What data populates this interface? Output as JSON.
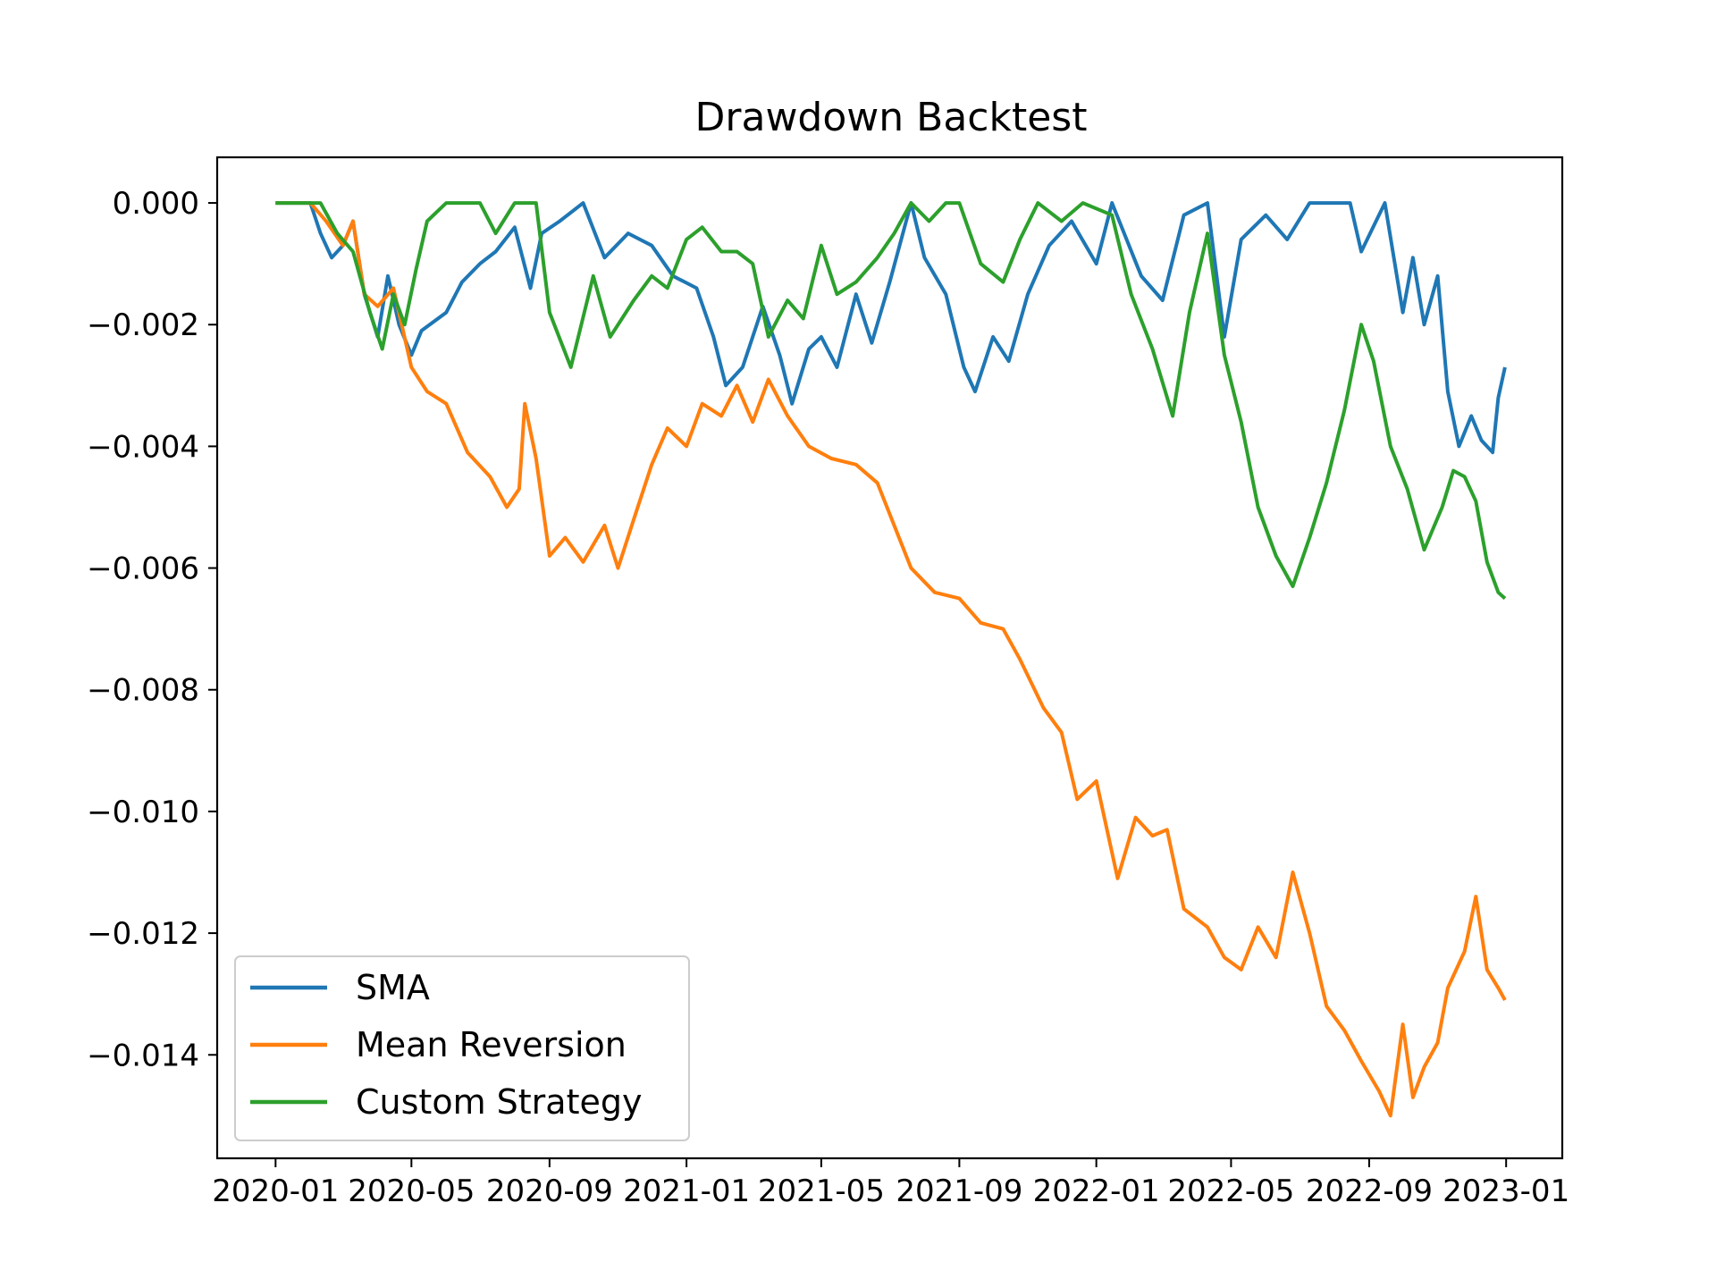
{
  "chart_data": {
    "type": "line",
    "title": "Drawdown Backtest",
    "xlabel": "",
    "ylabel": "",
    "x_axis": {
      "kind": "date",
      "range": [
        "2019-11-10",
        "2023-02-20"
      ],
      "ticks": [
        "2020-01",
        "2020-05",
        "2020-09",
        "2021-01",
        "2021-05",
        "2021-09",
        "2022-01",
        "2022-05",
        "2022-09",
        "2023-01"
      ]
    },
    "y_axis": {
      "range": [
        -0.0157,
        0.00075
      ],
      "ticks": [
        0,
        -0.002,
        -0.004,
        -0.006,
        -0.008,
        -0.01,
        -0.012,
        -0.014
      ],
      "tick_labels": [
        "0.000",
        "−0.002",
        "−0.004",
        "−0.006",
        "−0.008",
        "−0.010",
        "−0.012",
        "−0.014"
      ]
    },
    "grid": false,
    "legend": {
      "position": "lower-left",
      "entries": [
        "SMA",
        "Mean Reversion",
        "Custom Strategy"
      ]
    },
    "series": [
      {
        "name": "SMA",
        "color": "#1f77b4",
        "points": [
          [
            "2020-01-01",
            0
          ],
          [
            "2020-02-01",
            0
          ],
          [
            "2020-02-10",
            -0.0005
          ],
          [
            "2020-02-20",
            -0.0009
          ],
          [
            "2020-03-01",
            -0.0007
          ],
          [
            "2020-03-10",
            -0.0003
          ],
          [
            "2020-03-20",
            -0.0015
          ],
          [
            "2020-04-01",
            -0.0022
          ],
          [
            "2020-04-10",
            -0.0012
          ],
          [
            "2020-04-20",
            -0.002
          ],
          [
            "2020-05-01",
            -0.0025
          ],
          [
            "2020-05-10",
            -0.0021
          ],
          [
            "2020-06-01",
            -0.0018
          ],
          [
            "2020-06-15",
            -0.0013
          ],
          [
            "2020-07-01",
            -0.001
          ],
          [
            "2020-07-15",
            -0.0008
          ],
          [
            "2020-08-01",
            -0.0004
          ],
          [
            "2020-08-15",
            -0.0014
          ],
          [
            "2020-08-25",
            -0.0005
          ],
          [
            "2020-09-10",
            -0.0003
          ],
          [
            "2020-10-01",
            0
          ],
          [
            "2020-10-20",
            -0.0009
          ],
          [
            "2020-11-10",
            -0.0005
          ],
          [
            "2020-12-01",
            -0.0007
          ],
          [
            "2020-12-20",
            -0.0012
          ],
          [
            "2021-01-10",
            -0.0014
          ],
          [
            "2021-01-25",
            -0.0022
          ],
          [
            "2021-02-05",
            -0.003
          ],
          [
            "2021-02-20",
            -0.0027
          ],
          [
            "2021-03-10",
            -0.0017
          ],
          [
            "2021-03-25",
            -0.0025
          ],
          [
            "2021-04-05",
            -0.0033
          ],
          [
            "2021-04-20",
            -0.0024
          ],
          [
            "2021-05-01",
            -0.0022
          ],
          [
            "2021-05-15",
            -0.0027
          ],
          [
            "2021-06-01",
            -0.0015
          ],
          [
            "2021-06-15",
            -0.0023
          ],
          [
            "2021-07-01",
            -0.0013
          ],
          [
            "2021-07-20",
            0
          ],
          [
            "2021-08-01",
            -0.0009
          ],
          [
            "2021-08-20",
            -0.0015
          ],
          [
            "2021-09-05",
            -0.0027
          ],
          [
            "2021-09-15",
            -0.0031
          ],
          [
            "2021-10-01",
            -0.0022
          ],
          [
            "2021-10-15",
            -0.0026
          ],
          [
            "2021-11-01",
            -0.0015
          ],
          [
            "2021-11-20",
            -0.0007
          ],
          [
            "2021-12-10",
            -0.0003
          ],
          [
            "2022-01-01",
            -0.001
          ],
          [
            "2022-01-15",
            0
          ],
          [
            "2022-02-10",
            -0.0012
          ],
          [
            "2022-03-01",
            -0.0016
          ],
          [
            "2022-03-20",
            -0.0002
          ],
          [
            "2022-04-10",
            0
          ],
          [
            "2022-04-25",
            -0.0022
          ],
          [
            "2022-05-10",
            -0.0006
          ],
          [
            "2022-06-01",
            -0.0002
          ],
          [
            "2022-06-20",
            -0.0006
          ],
          [
            "2022-07-10",
            0
          ],
          [
            "2022-08-15",
            0
          ],
          [
            "2022-08-25",
            -0.0008
          ],
          [
            "2022-09-15",
            0
          ],
          [
            "2022-10-01",
            -0.0018
          ],
          [
            "2022-10-10",
            -0.0009
          ],
          [
            "2022-10-20",
            -0.002
          ],
          [
            "2022-11-01",
            -0.0012
          ],
          [
            "2022-11-10",
            -0.0031
          ],
          [
            "2022-11-20",
            -0.004
          ],
          [
            "2022-12-01",
            -0.0035
          ],
          [
            "2022-12-10",
            -0.0039
          ],
          [
            "2022-12-20",
            -0.0041
          ],
          [
            "2022-12-25",
            -0.0032
          ],
          [
            "2022-12-31",
            -0.0027
          ]
        ]
      },
      {
        "name": "Mean Reversion",
        "color": "#ff7f0e",
        "points": [
          [
            "2020-01-01",
            0
          ],
          [
            "2020-02-01",
            0
          ],
          [
            "2020-02-15",
            -0.0003
          ],
          [
            "2020-03-01",
            -0.0007
          ],
          [
            "2020-03-10",
            -0.0003
          ],
          [
            "2020-03-20",
            -0.0015
          ],
          [
            "2020-04-01",
            -0.0017
          ],
          [
            "2020-04-15",
            -0.0014
          ],
          [
            "2020-05-01",
            -0.0027
          ],
          [
            "2020-05-15",
            -0.0031
          ],
          [
            "2020-06-01",
            -0.0033
          ],
          [
            "2020-06-20",
            -0.0041
          ],
          [
            "2020-07-10",
            -0.0045
          ],
          [
            "2020-07-25",
            -0.005
          ],
          [
            "2020-08-05",
            -0.0047
          ],
          [
            "2020-08-10",
            -0.0033
          ],
          [
            "2020-08-20",
            -0.0042
          ],
          [
            "2020-09-01",
            -0.0058
          ],
          [
            "2020-09-15",
            -0.0055
          ],
          [
            "2020-10-01",
            -0.0059
          ],
          [
            "2020-10-20",
            -0.0053
          ],
          [
            "2020-11-01",
            -0.006
          ],
          [
            "2020-11-15",
            -0.0052
          ],
          [
            "2020-12-01",
            -0.0043
          ],
          [
            "2020-12-15",
            -0.0037
          ],
          [
            "2021-01-01",
            -0.004
          ],
          [
            "2021-01-15",
            -0.0033
          ],
          [
            "2021-02-01",
            -0.0035
          ],
          [
            "2021-02-15",
            -0.003
          ],
          [
            "2021-03-01",
            -0.0036
          ],
          [
            "2021-03-15",
            -0.0029
          ],
          [
            "2021-04-01",
            -0.0035
          ],
          [
            "2021-04-20",
            -0.004
          ],
          [
            "2021-05-10",
            -0.0042
          ],
          [
            "2021-06-01",
            -0.0043
          ],
          [
            "2021-06-20",
            -0.0046
          ],
          [
            "2021-07-05",
            -0.0053
          ],
          [
            "2021-07-20",
            -0.006
          ],
          [
            "2021-08-10",
            -0.0064
          ],
          [
            "2021-09-01",
            -0.0065
          ],
          [
            "2021-09-20",
            -0.0069
          ],
          [
            "2021-10-10",
            -0.007
          ],
          [
            "2021-10-25",
            -0.0075
          ],
          [
            "2021-11-15",
            -0.0083
          ],
          [
            "2021-12-01",
            -0.0087
          ],
          [
            "2021-12-15",
            -0.0098
          ],
          [
            "2022-01-01",
            -0.0095
          ],
          [
            "2022-01-20",
            -0.0111
          ],
          [
            "2022-02-05",
            -0.0101
          ],
          [
            "2022-02-20",
            -0.0104
          ],
          [
            "2022-03-05",
            -0.0103
          ],
          [
            "2022-03-20",
            -0.0116
          ],
          [
            "2022-04-10",
            -0.0119
          ],
          [
            "2022-04-25",
            -0.0124
          ],
          [
            "2022-05-10",
            -0.0126
          ],
          [
            "2022-05-25",
            -0.0119
          ],
          [
            "2022-06-10",
            -0.0124
          ],
          [
            "2022-06-25",
            -0.011
          ],
          [
            "2022-07-10",
            -0.012
          ],
          [
            "2022-07-25",
            -0.0132
          ],
          [
            "2022-08-10",
            -0.0136
          ],
          [
            "2022-08-25",
            -0.0141
          ],
          [
            "2022-09-10",
            -0.0146
          ],
          [
            "2022-09-20",
            -0.015
          ],
          [
            "2022-10-01",
            -0.0135
          ],
          [
            "2022-10-10",
            -0.0147
          ],
          [
            "2022-10-20",
            -0.0142
          ],
          [
            "2022-11-01",
            -0.0138
          ],
          [
            "2022-11-10",
            -0.0129
          ],
          [
            "2022-11-25",
            -0.0123
          ],
          [
            "2022-12-05",
            -0.0114
          ],
          [
            "2022-12-15",
            -0.0126
          ],
          [
            "2022-12-25",
            -0.0129
          ],
          [
            "2022-12-31",
            -0.0131
          ]
        ]
      },
      {
        "name": "Custom Strategy",
        "color": "#2ca02c",
        "points": [
          [
            "2020-01-01",
            0
          ],
          [
            "2020-02-10",
            0
          ],
          [
            "2020-02-25",
            -0.0005
          ],
          [
            "2020-03-10",
            -0.0008
          ],
          [
            "2020-03-25",
            -0.0018
          ],
          [
            "2020-04-05",
            -0.0024
          ],
          [
            "2020-04-15",
            -0.0015
          ],
          [
            "2020-04-25",
            -0.002
          ],
          [
            "2020-05-05",
            -0.0011
          ],
          [
            "2020-05-15",
            -0.0003
          ],
          [
            "2020-06-01",
            0
          ],
          [
            "2020-07-01",
            0
          ],
          [
            "2020-07-15",
            -0.0005
          ],
          [
            "2020-08-01",
            0
          ],
          [
            "2020-08-20",
            0
          ],
          [
            "2020-09-01",
            -0.0018
          ],
          [
            "2020-09-20",
            -0.0027
          ],
          [
            "2020-10-10",
            -0.0012
          ],
          [
            "2020-10-25",
            -0.0022
          ],
          [
            "2020-11-15",
            -0.0016
          ],
          [
            "2020-12-01",
            -0.0012
          ],
          [
            "2020-12-15",
            -0.0014
          ],
          [
            "2021-01-01",
            -0.0006
          ],
          [
            "2021-01-15",
            -0.0004
          ],
          [
            "2021-02-01",
            -0.0008
          ],
          [
            "2021-02-15",
            -0.0008
          ],
          [
            "2021-03-01",
            -0.001
          ],
          [
            "2021-03-15",
            -0.0022
          ],
          [
            "2021-04-01",
            -0.0016
          ],
          [
            "2021-04-15",
            -0.0019
          ],
          [
            "2021-05-01",
            -0.0007
          ],
          [
            "2021-05-15",
            -0.0015
          ],
          [
            "2021-06-01",
            -0.0013
          ],
          [
            "2021-06-20",
            -0.0009
          ],
          [
            "2021-07-05",
            -0.0005
          ],
          [
            "2021-07-20",
            0
          ],
          [
            "2021-08-05",
            -0.0003
          ],
          [
            "2021-08-20",
            0
          ],
          [
            "2021-09-01",
            0
          ],
          [
            "2021-09-20",
            -0.001
          ],
          [
            "2021-10-10",
            -0.0013
          ],
          [
            "2021-10-25",
            -0.0006
          ],
          [
            "2021-11-10",
            0
          ],
          [
            "2021-12-01",
            -0.0003
          ],
          [
            "2021-12-20",
            0
          ],
          [
            "2022-01-15",
            -0.0002
          ],
          [
            "2022-02-01",
            -0.0015
          ],
          [
            "2022-02-20",
            -0.0024
          ],
          [
            "2022-03-10",
            -0.0035
          ],
          [
            "2022-03-25",
            -0.0018
          ],
          [
            "2022-04-10",
            -0.0005
          ],
          [
            "2022-04-25",
            -0.0025
          ],
          [
            "2022-05-10",
            -0.0036
          ],
          [
            "2022-05-25",
            -0.005
          ],
          [
            "2022-06-10",
            -0.0058
          ],
          [
            "2022-06-25",
            -0.0063
          ],
          [
            "2022-07-10",
            -0.0055
          ],
          [
            "2022-07-25",
            -0.0046
          ],
          [
            "2022-08-10",
            -0.0034
          ],
          [
            "2022-08-25",
            -0.002
          ],
          [
            "2022-09-05",
            -0.0026
          ],
          [
            "2022-09-20",
            -0.004
          ],
          [
            "2022-10-05",
            -0.0047
          ],
          [
            "2022-10-20",
            -0.0057
          ],
          [
            "2022-11-05",
            -0.005
          ],
          [
            "2022-11-15",
            -0.0044
          ],
          [
            "2022-11-25",
            -0.0045
          ],
          [
            "2022-12-05",
            -0.0049
          ],
          [
            "2022-12-15",
            -0.0059
          ],
          [
            "2022-12-25",
            -0.0064
          ],
          [
            "2022-12-31",
            -0.0065
          ]
        ]
      }
    ]
  }
}
